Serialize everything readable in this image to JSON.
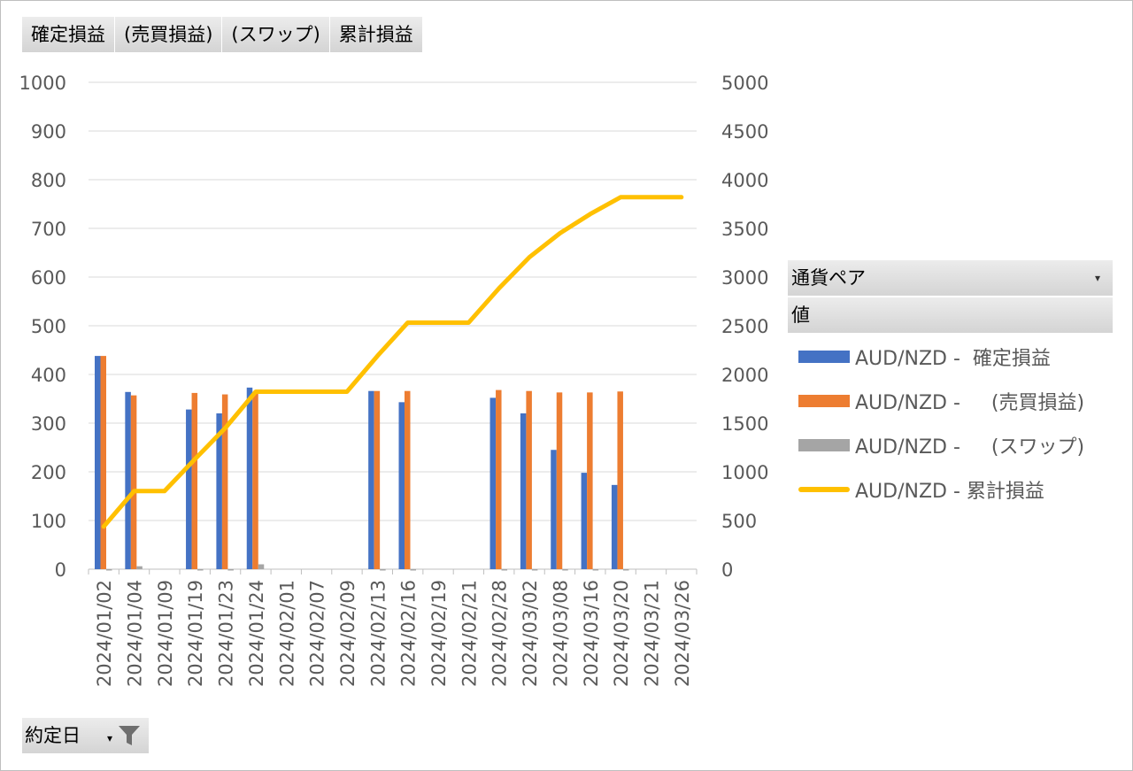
{
  "field_bar": [
    "確定損益",
    "(売買損益)",
    "(スワップ)",
    "累計損益"
  ],
  "legend": {
    "header": "通貨ペア",
    "values_label": "値",
    "items": [
      {
        "label": "AUD/NZD -  確定損益",
        "color": "#4472c4",
        "kind": "bar"
      },
      {
        "label": "AUD/NZD -     (売買損益)",
        "color": "#ed7d31",
        "kind": "bar"
      },
      {
        "label": "AUD/NZD -     (スワップ)",
        "color": "#a5a5a5",
        "kind": "bar"
      },
      {
        "label": "AUD/NZD - 累計損益",
        "color": "#ffc000",
        "kind": "line"
      }
    ]
  },
  "filter_label": "約定日",
  "chart_data": {
    "type": "bar+line",
    "categories": [
      "2024/01/02",
      "2024/01/04",
      "2024/01/09",
      "2024/01/19",
      "2024/01/23",
      "2024/01/24",
      "2024/02/01",
      "2024/02/07",
      "2024/02/09",
      "2024/02/13",
      "2024/02/16",
      "2024/02/19",
      "2024/02/21",
      "2024/02/28",
      "2024/03/02",
      "2024/03/08",
      "2024/03/16",
      "2024/03/20",
      "2024/03/21",
      "2024/03/26"
    ],
    "y_left": {
      "min": 0,
      "max": 1000,
      "ticks": [
        0,
        100,
        200,
        300,
        400,
        500,
        600,
        700,
        800,
        900,
        1000
      ]
    },
    "y_right": {
      "min": 0,
      "max": 5000,
      "ticks": [
        0,
        500,
        1000,
        1500,
        2000,
        2500,
        3000,
        3500,
        4000,
        4500,
        5000
      ]
    },
    "grid": true,
    "series": [
      {
        "name": "AUD/NZD -  確定損益",
        "axis": "left",
        "color": "#4472c4",
        "values": [
          438,
          364,
          null,
          328,
          320,
          373,
          null,
          null,
          null,
          366,
          343,
          null,
          null,
          352,
          320,
          245,
          198,
          173,
          null,
          null
        ]
      },
      {
        "name": "AUD/NZD -     (売買損益)",
        "axis": "left",
        "color": "#ed7d31",
        "values": [
          438,
          357,
          null,
          362,
          359,
          364,
          null,
          null,
          null,
          366,
          366,
          null,
          null,
          368,
          366,
          363,
          363,
          365,
          null,
          null
        ]
      },
      {
        "name": "AUD/NZD -     (スワップ)",
        "axis": "left",
        "color": "#a5a5a5",
        "values": [
          0,
          6,
          null,
          -2,
          -2,
          10,
          null,
          null,
          null,
          0,
          -2,
          null,
          null,
          -2,
          -2,
          -2,
          -2,
          -2,
          null,
          null
        ]
      },
      {
        "name": "AUD/NZD - 累計損益",
        "axis": "right",
        "color": "#ffc000",
        "kind": "line",
        "values": [
          438,
          802,
          802,
          1130,
          1450,
          1823,
          1823,
          1823,
          1823,
          2189,
          2532,
          2532,
          2532,
          2884,
          3204,
          3449,
          3647,
          3820,
          3820,
          3820
        ]
      }
    ]
  }
}
